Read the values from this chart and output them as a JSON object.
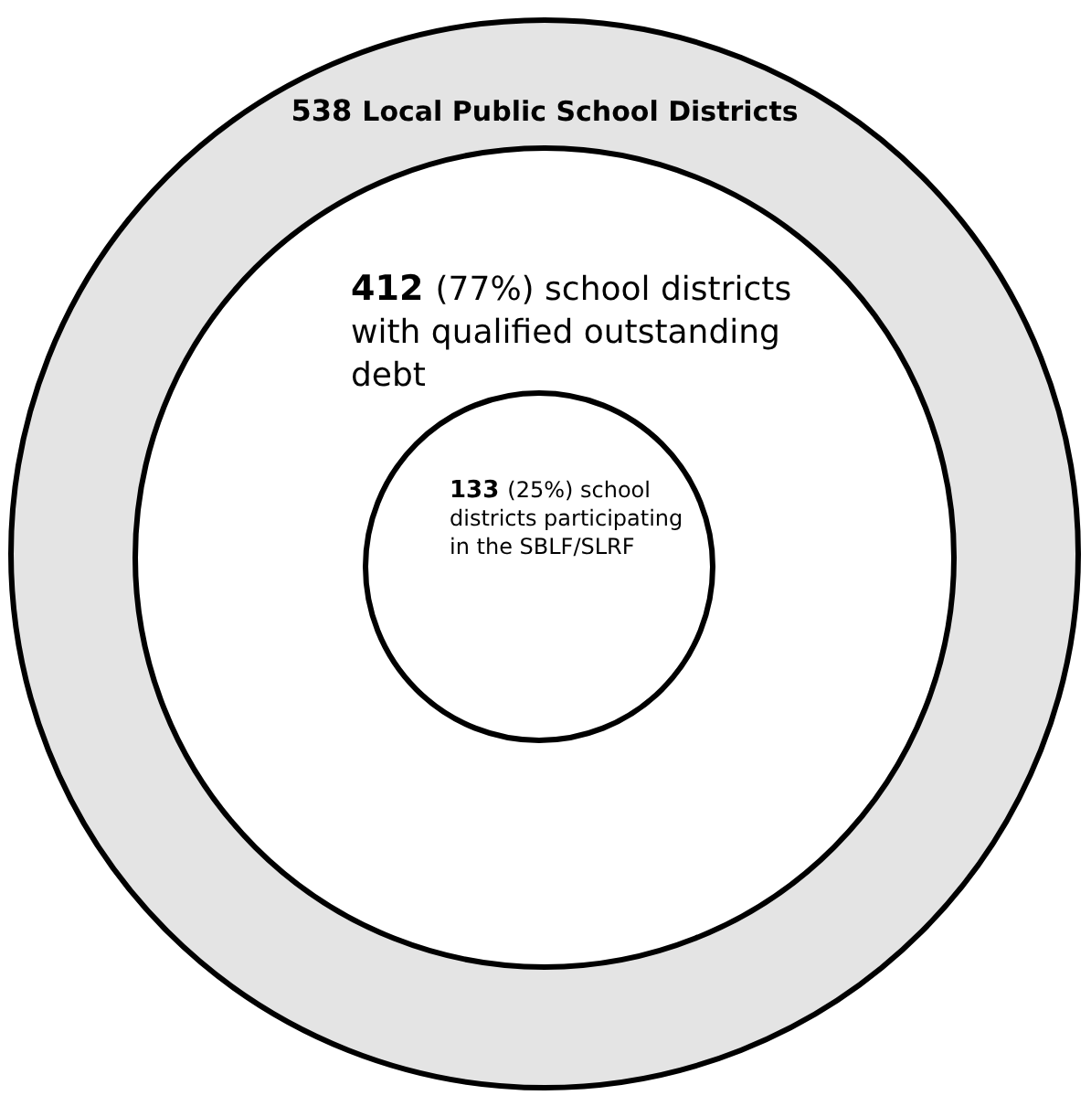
{
  "chart_data": {
    "type": "other",
    "categories": [
      "Local Public School Districts",
      "(77%) school districts with qualified outstanding debt",
      "(25%) school districts participating in the SBLF/SLRF"
    ],
    "values": [
      538,
      412,
      133
    ],
    "colors": [
      "#e4e4e4",
      "#ffffff",
      "#ffffff"
    ],
    "data_labels": true
  }
}
